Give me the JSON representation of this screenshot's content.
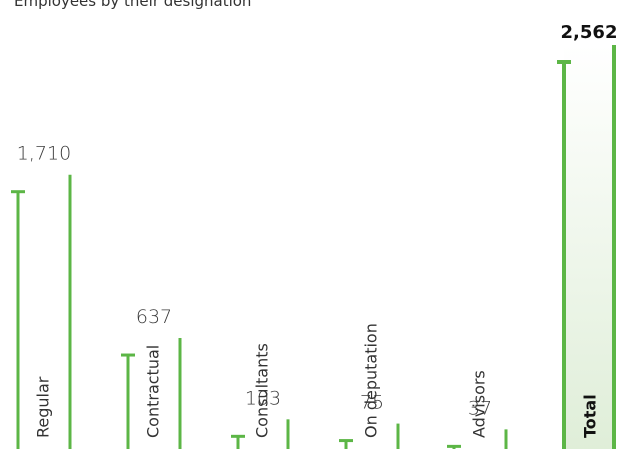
{
  "title": "Employees by their designation",
  "colors": {
    "accent": "#5cb646",
    "total_fill_top": "#ffffff",
    "total_fill_bottom": "#dfeed8"
  },
  "chart_data": {
    "type": "bar",
    "categories": [
      "Regular",
      "Contractual",
      "Consultants",
      "On deputation",
      "Advisors",
      "Total"
    ],
    "values": [
      1710,
      637,
      103,
      75,
      37,
      2562
    ],
    "value_labels": [
      "1,710",
      "637",
      "103",
      "75",
      "37",
      "2,562"
    ],
    "highlight": "Total",
    "ylim": [
      0,
      2562
    ],
    "grid": false,
    "legend": "none"
  }
}
